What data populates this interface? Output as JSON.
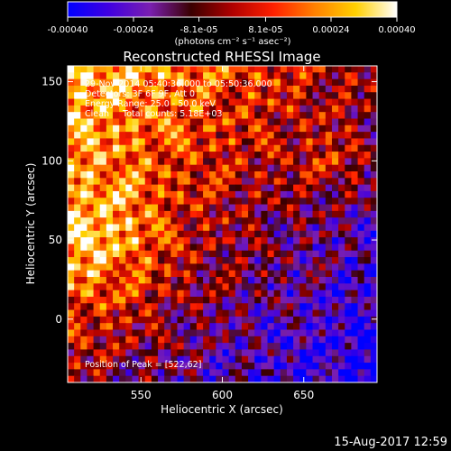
{
  "chart_data": {
    "type": "heatmap",
    "title": "Reconstructed RHESSI Image",
    "xlabel": "Heliocentric X (arcsec)",
    "ylabel": "Heliocentric Y (arcsec)",
    "xlim": [
      505,
      695
    ],
    "ylim": [
      -40,
      160
    ],
    "x_ticks": [
      550,
      600,
      650
    ],
    "y_ticks": [
      0,
      50,
      100,
      150
    ],
    "colorbar": {
      "min": -0.0004,
      "max": 0.0004,
      "ticks": [
        -0.0004,
        -0.00024,
        -8.1e-05,
        8.1e-05,
        0.00024,
        0.0004
      ],
      "tick_labels": [
        "-0.00040",
        "-0.00024",
        "-8.1e-05",
        "8.1e-05",
        "0.00024",
        "0.00040"
      ],
      "unit_label": "(photons cm⁻² s⁻¹ asec⁻²)",
      "colormap": [
        "#0000ff",
        "#4000e0",
        "#7a1fb0",
        "#3a0000",
        "#b00000",
        "#ff2000",
        "#ff8000",
        "#ffd000",
        "#ffffff"
      ]
    },
    "annotations": [
      "29-Nov-2014 05:40:36.000 to 05:50:36.000",
      "Detectors: 3F 6F 9F, Att 0",
      "Energy Range: 25.0 - 50.0 keV",
      "Clean     Total counts: 5.18E+03"
    ],
    "peak_label": "Position of Peak = [522,62]",
    "peak_position": [
      522,
      62
    ],
    "grid": false,
    "legend": "colorbar-top"
  },
  "footer": {
    "timestamp": "15-Aug-2017 12:59"
  }
}
